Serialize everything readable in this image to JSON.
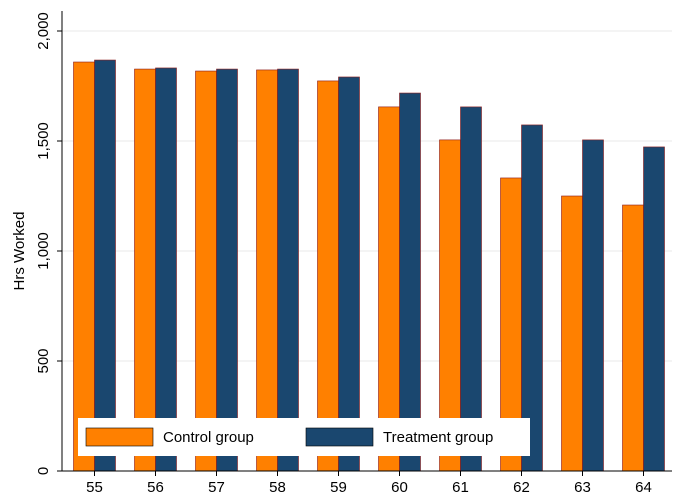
{
  "chart_data": {
    "type": "bar",
    "y_label": "Hrs Worked",
    "categories": [
      "55",
      "56",
      "57",
      "58",
      "59",
      "60",
      "61",
      "62",
      "63",
      "64"
    ],
    "series": [
      {
        "name": "Control group",
        "color": "#ff8000",
        "values": [
          1859,
          1827,
          1818,
          1823,
          1773,
          1655,
          1505,
          1332,
          1250,
          1209
        ]
      },
      {
        "name": "Treatment group",
        "color": "#1a476f",
        "values": [
          1868,
          1832,
          1827,
          1827,
          1791,
          1718,
          1655,
          1573,
          1505,
          1473
        ]
      }
    ],
    "ylim": [
      0,
      2000
    ],
    "yticks": [
      0,
      500,
      {
        "value": 1000,
        "label": "1,000"
      },
      {
        "value": 1500,
        "label": "1,500"
      },
      {
        "value": 2000,
        "label": "2,000"
      }
    ],
    "grid": true,
    "legend": "bottom"
  }
}
